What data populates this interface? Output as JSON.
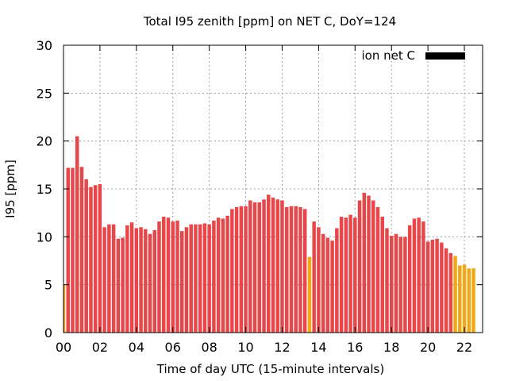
{
  "chart_data": {
    "type": "bar",
    "title": "Total I95 zenith [ppm] on NET C, DoY=124",
    "xlabel": "Time of day UTC (15-minute intervals)",
    "ylabel": "I95 [ppm]",
    "xlim": [
      0,
      23
    ],
    "ylim": [
      0,
      30
    ],
    "xticks": [
      "00",
      "02",
      "04",
      "06",
      "08",
      "10",
      "12",
      "14",
      "16",
      "18",
      "20",
      "22"
    ],
    "yticks": [
      "0",
      "5",
      "10",
      "15",
      "20",
      "25",
      "30"
    ],
    "grid": true,
    "legend": {
      "label": "ion net C",
      "position": "top-right",
      "color": "#000000"
    },
    "colors": {
      "normal": "#e8474a",
      "flagged": "#f0a818"
    },
    "bar_interval_hours": 0.25,
    "values": [
      5.0,
      17.2,
      17.2,
      20.5,
      17.3,
      16.0,
      15.2,
      15.4,
      15.5,
      11.0,
      11.3,
      11.3,
      9.8,
      9.9,
      11.2,
      11.5,
      10.9,
      11.0,
      10.8,
      10.3,
      10.7,
      11.6,
      12.1,
      12.0,
      11.6,
      11.7,
      10.6,
      11.0,
      11.3,
      11.3,
      11.3,
      11.4,
      11.3,
      11.7,
      12.0,
      11.9,
      12.2,
      12.9,
      13.1,
      13.2,
      13.2,
      13.8,
      13.6,
      13.6,
      13.9,
      14.4,
      14.1,
      13.9,
      13.8,
      13.1,
      13.2,
      13.2,
      13.1,
      12.9,
      7.9,
      11.6,
      11.0,
      10.3,
      9.9,
      9.6,
      10.9,
      12.1,
      12.0,
      12.3,
      12.0,
      13.8,
      14.6,
      14.3,
      13.8,
      13.1,
      12.1,
      10.9,
      10.1,
      10.3,
      10.0,
      10.0,
      11.2,
      11.9,
      12.0,
      11.6,
      9.5,
      9.7,
      9.8,
      9.4,
      8.8,
      8.3,
      8.0,
      7.0,
      7.1,
      6.7,
      6.7
    ],
    "flagged": [
      0,
      54,
      86,
      87,
      88,
      89,
      90
    ]
  }
}
